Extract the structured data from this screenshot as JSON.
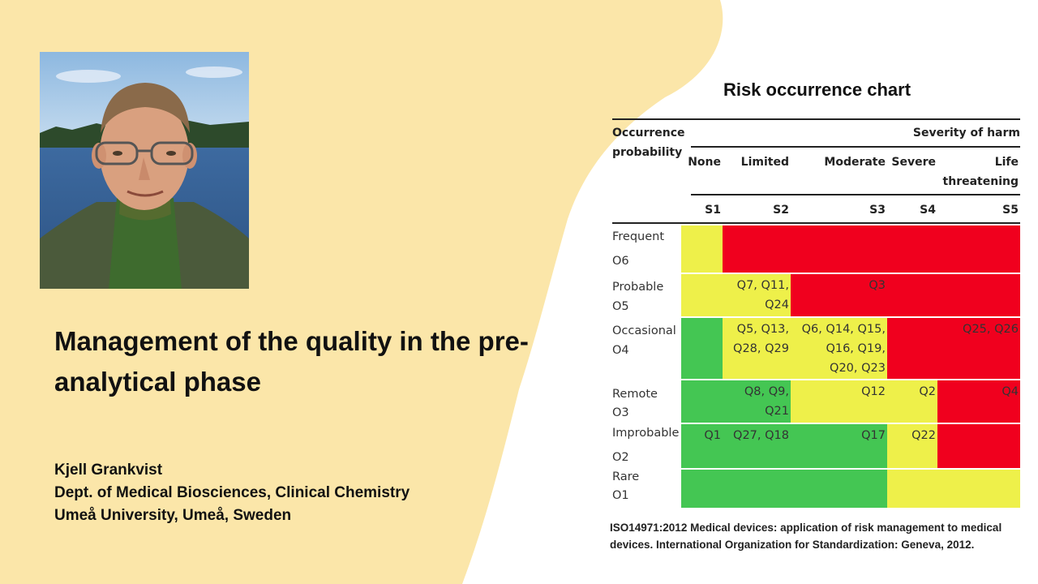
{
  "slide": {
    "title": "Management of the quality in the pre-analytical phase",
    "author": {
      "name": "Kjell Grankvist",
      "dept": "Dept. of Medical Biosciences, Clinical Chemistry",
      "affiliation": "Umeå University, Umeå, Sweden"
    },
    "reference": "ISO14971:2012 Medical devices: application of risk management to medical devices. International Organization for Standardization: Geneva, 2012.",
    "colors": {
      "background_blob": "#fbe6a9",
      "green": "#44c653",
      "yellow": "#eef04a",
      "red": "#f0001e"
    }
  },
  "chart_data": {
    "type": "table",
    "title": "Risk occurrence chart",
    "row_header": [
      "Occurrence",
      "probability"
    ],
    "col_header": "Severity of harm",
    "columns": [
      {
        "name": "None",
        "code": "S1"
      },
      {
        "name": "Limited",
        "code": "S2"
      },
      {
        "name": "Moderate",
        "code": "S3"
      },
      {
        "name": "Severe",
        "code": "S4"
      },
      {
        "name": "Life threatening",
        "code": "S5",
        "name_lines": [
          "Life",
          "threatening"
        ]
      }
    ],
    "rows": [
      {
        "label": "Frequent",
        "code": "O6",
        "colors": [
          "yellow",
          "red",
          "red",
          "red",
          "red"
        ],
        "items": [
          "",
          "",
          "",
          "",
          ""
        ]
      },
      {
        "label": "Probable",
        "code": "O5",
        "colors": [
          "yellow",
          "yellow",
          "red",
          "red",
          "red"
        ],
        "items": [
          "",
          "Q7, Q11, Q24",
          "Q3",
          "",
          ""
        ],
        "item_lines": [
          [],
          [
            "Q7, Q11,",
            "Q24"
          ],
          [
            "Q3"
          ],
          [],
          []
        ]
      },
      {
        "label": "Occasional",
        "code": "O4",
        "colors": [
          "green",
          "yellow",
          "yellow",
          "red",
          "red"
        ],
        "items": [
          "",
          "Q5, Q13, Q28, Q29",
          "Q6, Q14, Q15, Q16, Q19, Q20, Q23",
          "",
          "Q25, Q26"
        ],
        "item_lines": [
          [],
          [
            "Q5, Q13,",
            "Q28, Q29"
          ],
          [
            "Q6, Q14, Q15,",
            "Q16, Q19,",
            "Q20, Q23"
          ],
          [],
          [
            "Q25, Q26"
          ]
        ]
      },
      {
        "label": "Remote",
        "code": "O3",
        "colors": [
          "green",
          "green",
          "yellow",
          "yellow",
          "red"
        ],
        "items": [
          "",
          "Q8, Q9, Q21",
          "Q12",
          "Q2",
          "Q4"
        ],
        "item_lines": [
          [],
          [
            "Q8, Q9,",
            "Q21"
          ],
          [
            "Q12"
          ],
          [
            "Q2"
          ],
          [
            "Q4"
          ]
        ]
      },
      {
        "label": "Improbable",
        "code": "O2",
        "colors": [
          "green",
          "green",
          "green",
          "yellow",
          "red"
        ],
        "items": [
          "Q1",
          "Q27, Q18",
          "Q17",
          "Q22",
          ""
        ],
        "item_lines": [
          [
            "Q1"
          ],
          [
            "Q27, Q18"
          ],
          [
            "Q17"
          ],
          [
            "Q22"
          ],
          []
        ]
      },
      {
        "label": "Rare",
        "code": "O1",
        "colors": [
          "green",
          "green",
          "green",
          "yellow",
          "yellow"
        ],
        "items": [
          "",
          "",
          "",
          "",
          ""
        ]
      }
    ]
  }
}
